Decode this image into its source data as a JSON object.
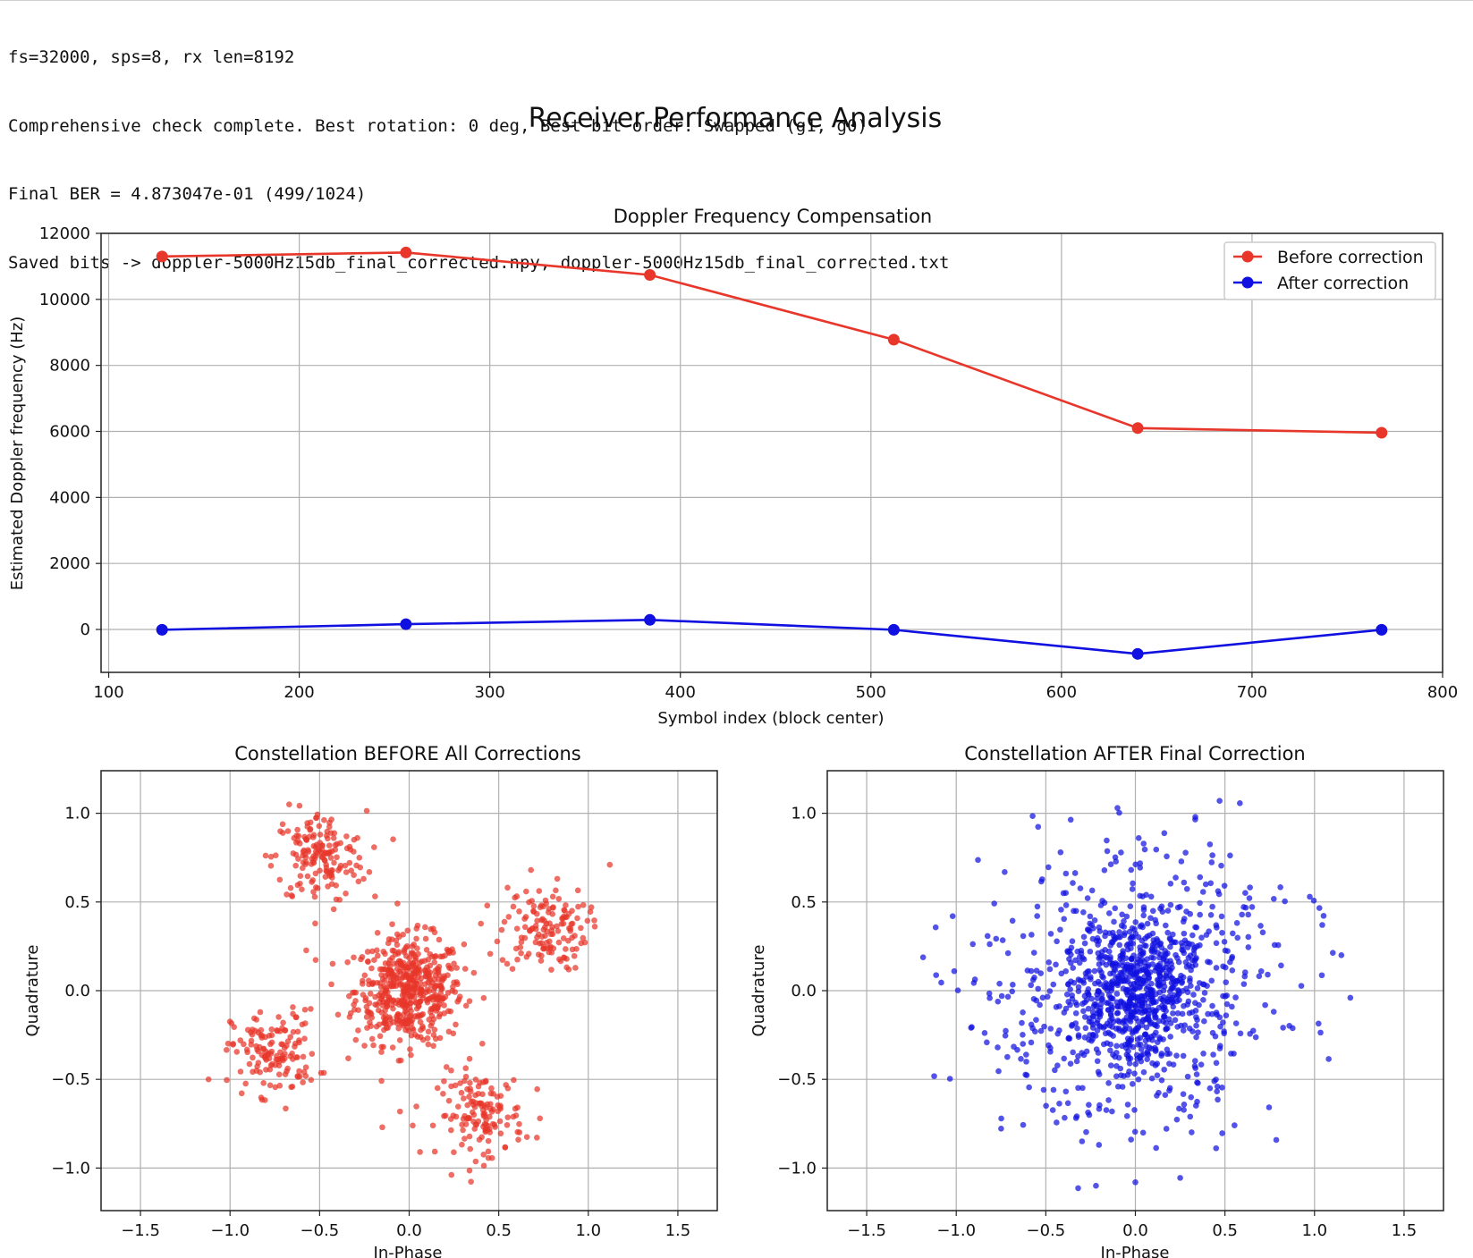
{
  "console": {
    "lines": [
      "fs=32000, sps=8, rx len=8192",
      "Comprehensive check complete. Best rotation: 0 deg, Best bit order: Swapped (g1, g0)",
      "Final BER = 4.873047e-01 (499/1024)",
      "Saved bits -> doppler-5000Hz15db_final_corrected.npy, doppler-5000Hz15db_final_corrected.txt"
    ]
  },
  "figure": {
    "suptitle": "Receiver Performance Analysis"
  },
  "chart_data": [
    {
      "type": "line",
      "title": "Doppler Frequency Compensation",
      "xlabel": "Symbol index (block center)",
      "ylabel": "Estimated Doppler frequency (Hz)",
      "x": [
        128,
        256,
        384,
        512,
        640,
        768
      ],
      "xlim": [
        96,
        800
      ],
      "ylim": [
        -1300,
        12000
      ],
      "xticks": [
        100,
        200,
        300,
        400,
        500,
        600,
        700,
        800
      ],
      "yticks": [
        0,
        2000,
        4000,
        6000,
        8000,
        10000,
        12000
      ],
      "grid": true,
      "legend": "top-right",
      "series": [
        {
          "name": "Before correction",
          "color": "#e8362a",
          "values": [
            11300,
            11420,
            10740,
            8780,
            6100,
            5960
          ]
        },
        {
          "name": "After correction",
          "color": "#1010e0",
          "values": [
            -10,
            160,
            290,
            -10,
            -740,
            -10
          ]
        }
      ]
    },
    {
      "type": "scatter",
      "title": "Constellation BEFORE All Corrections",
      "xlabel": "In-Phase",
      "ylabel": "Quadrature",
      "xlim": [
        -1.72,
        1.72
      ],
      "ylim": [
        -1.24,
        1.24
      ],
      "xticks": [
        -1.5,
        -1.0,
        -0.5,
        0.0,
        0.5,
        1.0,
        1.5
      ],
      "yticks": [
        -1.0,
        -0.5,
        0.0,
        0.5,
        1.0
      ],
      "grid": true,
      "color": "#e8362a",
      "clusters": [
        {
          "center": [
            0.0,
            0.0
          ],
          "spread": 0.15,
          "count": 520
        },
        {
          "center": [
            -0.5,
            0.75
          ],
          "spread": 0.13,
          "count": 160
        },
        {
          "center": [
            0.75,
            0.35
          ],
          "spread": 0.12,
          "count": 140
        },
        {
          "center": [
            -0.75,
            -0.35
          ],
          "spread": 0.12,
          "count": 140
        },
        {
          "center": [
            0.4,
            -0.7
          ],
          "spread": 0.12,
          "count": 140
        }
      ],
      "outliers": [
        [
          -1.12,
          -0.5
        ],
        [
          1.12,
          0.71
        ],
        [
          0.68,
          0.68
        ],
        [
          -0.67,
          1.05
        ],
        [
          -0.15,
          -0.77
        ],
        [
          0.02,
          -0.76
        ],
        [
          0.73,
          -0.72
        ]
      ]
    },
    {
      "type": "scatter",
      "title": "Constellation AFTER Final Correction",
      "xlabel": "In-Phase",
      "ylabel": "Quadrature",
      "xlim": [
        -1.72,
        1.72
      ],
      "ylim": [
        -1.24,
        1.24
      ],
      "xticks": [
        -1.5,
        -1.0,
        -0.5,
        0.0,
        0.5,
        1.0,
        1.5
      ],
      "yticks": [
        -1.0,
        -0.5,
        0.0,
        0.5,
        1.0
      ],
      "grid": true,
      "color": "#1010e0",
      "clusters": [
        {
          "center": [
            0.0,
            0.0
          ],
          "spread": 0.18,
          "count": 520
        },
        {
          "center": [
            0.0,
            0.0
          ],
          "spread": 0.42,
          "count": 640
        }
      ],
      "outliers": [
        [
          -0.22,
          -1.1
        ],
        [
          0.0,
          -1.08
        ],
        [
          0.47,
          1.07
        ],
        [
          1.15,
          0.2
        ],
        [
          1.2,
          -0.04
        ],
        [
          -1.02,
          0.42
        ],
        [
          -0.1,
          1.03
        ]
      ]
    }
  ]
}
